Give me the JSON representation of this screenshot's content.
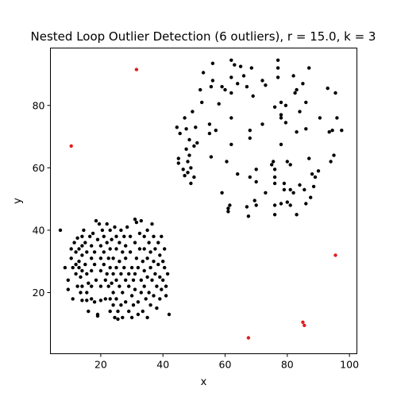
{
  "chart_data": {
    "type": "scatter",
    "title": "Nested Loop Outlier Detection (6 outliers), r = 15.0, k = 3",
    "xlabel": "x",
    "ylabel": "y",
    "xlim": [
      3.8,
      102.4
    ],
    "ylim": [
      0.4,
      98.4
    ],
    "xticks": [
      "20",
      "40",
      "60",
      "80",
      "100"
    ],
    "yticks": [
      "20",
      "40",
      "60",
      "80"
    ],
    "grid": false,
    "colors": {
      "inlier": "#000000",
      "outlier": "#e31a1c"
    },
    "series": [
      {
        "role": "inliers",
        "points": [
          [
            7,
            40
          ],
          [
            8.5,
            28
          ],
          [
            9.5,
            24
          ],
          [
            9.5,
            21
          ],
          [
            10.5,
            34
          ],
          [
            10.5,
            31
          ],
          [
            11,
            28
          ],
          [
            11,
            18
          ],
          [
            11.5,
            36
          ],
          [
            12,
            33
          ],
          [
            12,
            29
          ],
          [
            12,
            26
          ],
          [
            12.5,
            22
          ],
          [
            12.5,
            37.5
          ],
          [
            13,
            34
          ],
          [
            13,
            30
          ],
          [
            13,
            28
          ],
          [
            13.5,
            25
          ],
          [
            13.5,
            20
          ],
          [
            14,
            38
          ],
          [
            14,
            35
          ],
          [
            14,
            32
          ],
          [
            14,
            27
          ],
          [
            14,
            22
          ],
          [
            14,
            17.5
          ],
          [
            14.5,
            40
          ],
          [
            15,
            36
          ],
          [
            15,
            29
          ],
          [
            15.5,
            33
          ],
          [
            15.5,
            26
          ],
          [
            15.5,
            20
          ],
          [
            15.5,
            17.5
          ],
          [
            16,
            14
          ],
          [
            16,
            23
          ],
          [
            16.5,
            38
          ],
          [
            17,
            35
          ],
          [
            17,
            31
          ],
          [
            17,
            27
          ],
          [
            17,
            22
          ],
          [
            17,
            18
          ],
          [
            17.5,
            39
          ],
          [
            18,
            33
          ],
          [
            18,
            29
          ],
          [
            18,
            17
          ],
          [
            18.5,
            43
          ],
          [
            18.5,
            24
          ],
          [
            19,
            13
          ],
          [
            19,
            12.5
          ],
          [
            19,
            37
          ],
          [
            19.5,
            42
          ],
          [
            20,
            35
          ],
          [
            20,
            31
          ],
          [
            20,
            27
          ],
          [
            20,
            22
          ],
          [
            20,
            17.5
          ],
          [
            20.5,
            40
          ],
          [
            21,
            38
          ],
          [
            21,
            33
          ],
          [
            21,
            29
          ],
          [
            21.5,
            24
          ],
          [
            21.5,
            18
          ],
          [
            22,
            42
          ],
          [
            22,
            36
          ],
          [
            22,
            26
          ],
          [
            22.5,
            31
          ],
          [
            22.5,
            22
          ],
          [
            23,
            40
          ],
          [
            23,
            34
          ],
          [
            23,
            28
          ],
          [
            23,
            18
          ],
          [
            23,
            14
          ],
          [
            23.5,
            37
          ],
          [
            23.5,
            23
          ],
          [
            24,
            31
          ],
          [
            24,
            26
          ],
          [
            24,
            20
          ],
          [
            24,
            16
          ],
          [
            24.5,
            41
          ],
          [
            24.5,
            12
          ],
          [
            25,
            38
          ],
          [
            25,
            34
          ],
          [
            25,
            28
          ],
          [
            25,
            24
          ],
          [
            25,
            18
          ],
          [
            25.5,
            14
          ],
          [
            25.5,
            11.5
          ],
          [
            26,
            36
          ],
          [
            26,
            30
          ],
          [
            26,
            22
          ],
          [
            26.5,
            40
          ],
          [
            26.5,
            26
          ],
          [
            26.5,
            16
          ],
          [
            27,
            33
          ],
          [
            27,
            20
          ],
          [
            27,
            12
          ],
          [
            27.5,
            38
          ],
          [
            27.5,
            28
          ],
          [
            28,
            35
          ],
          [
            28,
            31
          ],
          [
            28,
            24
          ],
          [
            28,
            17
          ],
          [
            28.5,
            41
          ],
          [
            29,
            26
          ],
          [
            29,
            22
          ],
          [
            29,
            14
          ],
          [
            29.5,
            38
          ],
          [
            29.5,
            33
          ],
          [
            30,
            28
          ],
          [
            30,
            19
          ],
          [
            30,
            12
          ],
          [
            30.5,
            24
          ],
          [
            30.5,
            16
          ],
          [
            31,
            43.5
          ],
          [
            31,
            36
          ],
          [
            31,
            26
          ],
          [
            31,
            21
          ],
          [
            31.5,
            42.5
          ],
          [
            31.5,
            31
          ],
          [
            32,
            28
          ],
          [
            32,
            17
          ],
          [
            32,
            13
          ],
          [
            32.5,
            39
          ],
          [
            32.5,
            34
          ],
          [
            33,
            43
          ],
          [
            33,
            24
          ],
          [
            33,
            20
          ],
          [
            33.5,
            30
          ],
          [
            33.5,
            14
          ],
          [
            34,
            38
          ],
          [
            34,
            34
          ],
          [
            34,
            27
          ],
          [
            34,
            22
          ],
          [
            34.5,
            18
          ],
          [
            35,
            40
          ],
          [
            35,
            31
          ],
          [
            35,
            25
          ],
          [
            35,
            12
          ],
          [
            35.5,
            36
          ],
          [
            35.5,
            20
          ],
          [
            36,
            33
          ],
          [
            36,
            28
          ],
          [
            36,
            16
          ],
          [
            36.5,
            42
          ],
          [
            36.5,
            24
          ],
          [
            37,
            38
          ],
          [
            37,
            30
          ],
          [
            37,
            19
          ],
          [
            37.5,
            34
          ],
          [
            37.5,
            26
          ],
          [
            38,
            22
          ],
          [
            38,
            15
          ],
          [
            38.5,
            36
          ],
          [
            38.5,
            29
          ],
          [
            39,
            32
          ],
          [
            39,
            25
          ],
          [
            39,
            18
          ],
          [
            39.5,
            38
          ],
          [
            39.5,
            21
          ],
          [
            40,
            30
          ],
          [
            40,
            24
          ],
          [
            40.5,
            34
          ],
          [
            40.5,
            28
          ],
          [
            41,
            22
          ],
          [
            41,
            19
          ],
          [
            41.5,
            26
          ],
          [
            42,
            13
          ],
          [
            44.5,
            73
          ],
          [
            45,
            63
          ],
          [
            45,
            61.5
          ],
          [
            45.5,
            71
          ],
          [
            46.5,
            59.5
          ],
          [
            47,
            57.5
          ],
          [
            47,
            76
          ],
          [
            47.5,
            66
          ],
          [
            47.5,
            72.5
          ],
          [
            48,
            58.5
          ],
          [
            48,
            62
          ],
          [
            48.5,
            64
          ],
          [
            48.5,
            69
          ],
          [
            49,
            60
          ],
          [
            49,
            55
          ],
          [
            49.5,
            78
          ],
          [
            50,
            57
          ],
          [
            50,
            67
          ],
          [
            50.5,
            73
          ],
          [
            51,
            68
          ],
          [
            52,
            85
          ],
          [
            52.5,
            81
          ],
          [
            53,
            90.5
          ],
          [
            55,
            71
          ],
          [
            55,
            74
          ],
          [
            55.5,
            63.5
          ],
          [
            55.5,
            86
          ],
          [
            56,
            93.5
          ],
          [
            56,
            88
          ],
          [
            57,
            72
          ],
          [
            58,
            80.5
          ],
          [
            59,
            52
          ],
          [
            59,
            86
          ],
          [
            60,
            85
          ],
          [
            60.5,
            62
          ],
          [
            61,
            46
          ],
          [
            61,
            47
          ],
          [
            61.5,
            48
          ],
          [
            62,
            89
          ],
          [
            62,
            67.5
          ],
          [
            62,
            76
          ],
          [
            62,
            94.5
          ],
          [
            62,
            84
          ],
          [
            63,
            93
          ],
          [
            64,
            87
          ],
          [
            64,
            58
          ],
          [
            65,
            92.5
          ],
          [
            66,
            89.5
          ],
          [
            67,
            86
          ],
          [
            67,
            47.5
          ],
          [
            67.5,
            44.5
          ],
          [
            68,
            72
          ],
          [
            68,
            57
          ],
          [
            68,
            69.5
          ],
          [
            68.5,
            92
          ],
          [
            69,
            83
          ],
          [
            69.5,
            49.5
          ],
          [
            70,
            48
          ],
          [
            70,
            59.5
          ],
          [
            70,
            55.5
          ],
          [
            72,
            88
          ],
          [
            72,
            74
          ],
          [
            73,
            52
          ],
          [
            73,
            86.5
          ],
          [
            75,
            61
          ],
          [
            75.5,
            62
          ],
          [
            76,
            59.5
          ],
          [
            76,
            57
          ],
          [
            76,
            55
          ],
          [
            76,
            79.5
          ],
          [
            76,
            45
          ],
          [
            76,
            48
          ],
          [
            77,
            92
          ],
          [
            77,
            94.5
          ],
          [
            77,
            89
          ],
          [
            78,
            81
          ],
          [
            78,
            77
          ],
          [
            78,
            67.5
          ],
          [
            78,
            76
          ],
          [
            78,
            48.5
          ],
          [
            79,
            55
          ],
          [
            79,
            53
          ],
          [
            79.5,
            74.5
          ],
          [
            79.5,
            80
          ],
          [
            80,
            62
          ],
          [
            80,
            49
          ],
          [
            81,
            61
          ],
          [
            81,
            53
          ],
          [
            81,
            48
          ],
          [
            82,
            89.5
          ],
          [
            82,
            52
          ],
          [
            82.5,
            84
          ],
          [
            83,
            71.5
          ],
          [
            83,
            45
          ],
          [
            83,
            85
          ],
          [
            84,
            54.5
          ],
          [
            84,
            78
          ],
          [
            85,
            87
          ],
          [
            85.5,
            53
          ],
          [
            86,
            48.5
          ],
          [
            86,
            72.5
          ],
          [
            86,
            81
          ],
          [
            87,
            92
          ],
          [
            87,
            63
          ],
          [
            87.5,
            50.5
          ],
          [
            88,
            58
          ],
          [
            88.5,
            54
          ],
          [
            89,
            57
          ],
          [
            90,
            59
          ],
          [
            90.5,
            76
          ],
          [
            93,
            85.5
          ],
          [
            93.5,
            71.5
          ],
          [
            94,
            62
          ],
          [
            94.5,
            72
          ],
          [
            95,
            64
          ],
          [
            95.5,
            84
          ],
          [
            96,
            76
          ],
          [
            97.5,
            72
          ]
        ]
      },
      {
        "role": "outliers",
        "points": [
          [
            10.5,
            67
          ],
          [
            31.5,
            91.5
          ],
          [
            67.5,
            5.5
          ],
          [
            85,
            10.5
          ],
          [
            85.5,
            9.5
          ],
          [
            95.5,
            32
          ]
        ]
      }
    ]
  }
}
